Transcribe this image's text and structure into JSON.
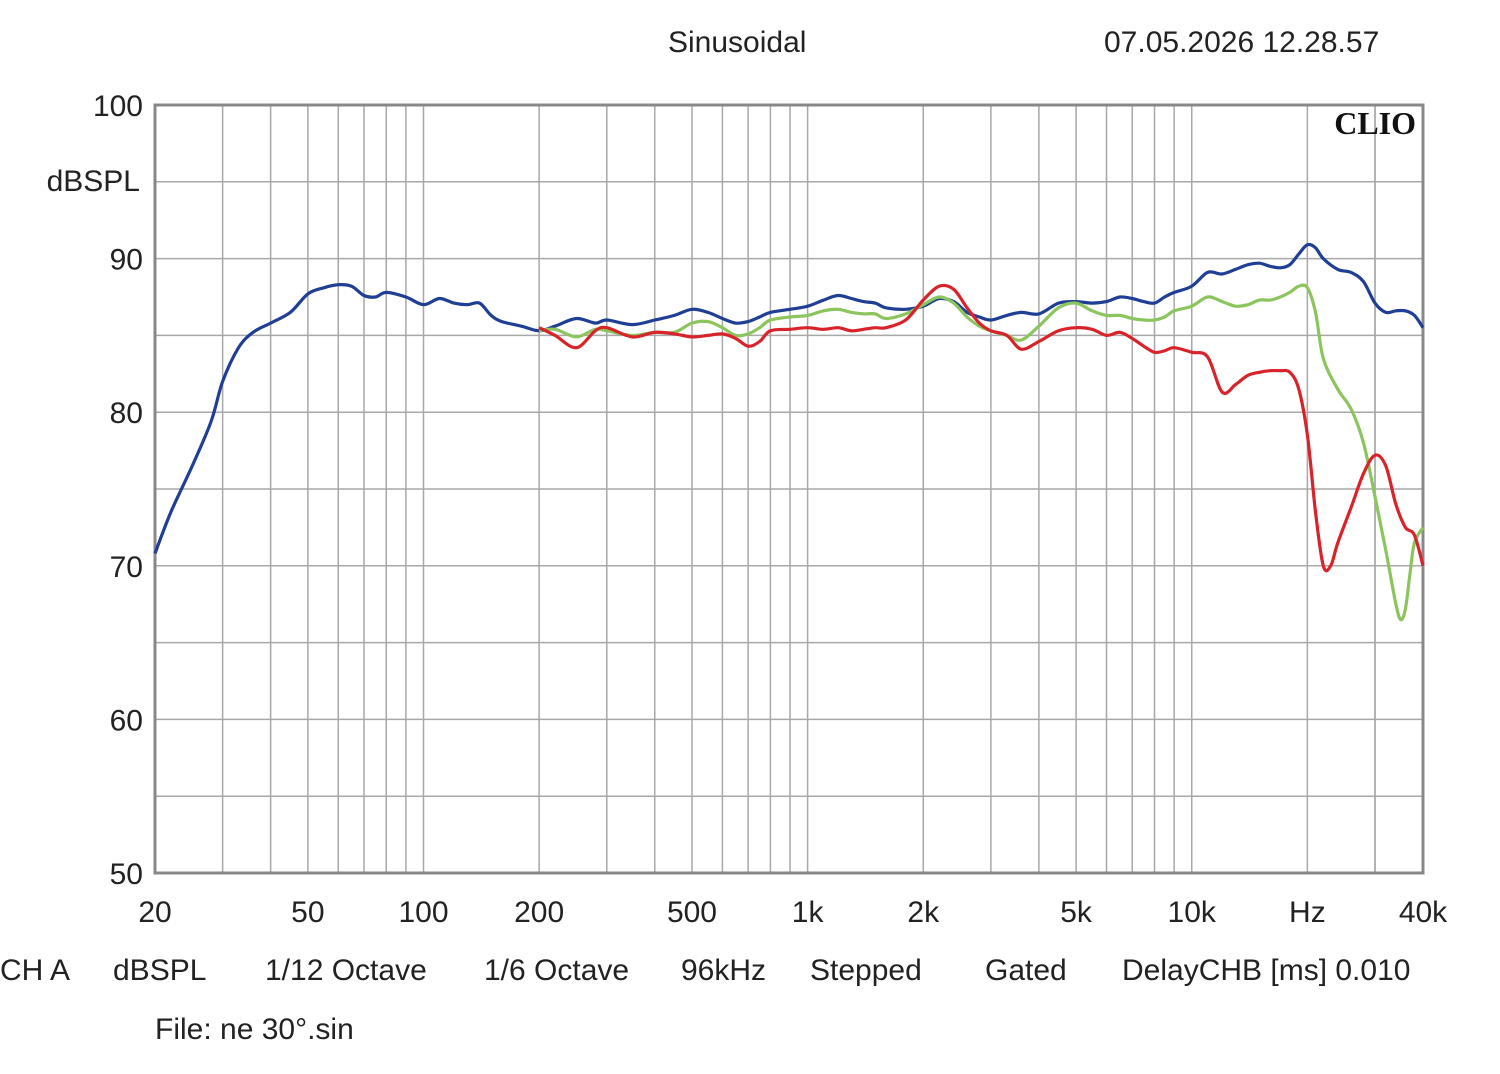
{
  "header": {
    "mode": "Sinusoidal",
    "datetime": "07.05.2026 12.28.57"
  },
  "brand": "CLIO",
  "footer": {
    "items": [
      "CH A",
      "dBSPL",
      "1/12 Octave",
      "1/6 Octave",
      "96kHz",
      "Stepped",
      "Gated",
      "DelayCHB [ms] 0.010"
    ],
    "file": "File: ne 30°.sin"
  },
  "colors": {
    "blue": "#1f3f94",
    "green": "#8cc55e",
    "red": "#d8232a",
    "grid": "#a8a8a8",
    "frame": "#888888"
  },
  "chart_data": {
    "type": "line",
    "xscale": "log",
    "xlim": [
      20,
      40000
    ],
    "ylim": [
      50,
      100
    ],
    "grid": true,
    "ylabel": "dBSPL",
    "x_ticks": [
      {
        "v": 20,
        "label": "20"
      },
      {
        "v": 50,
        "label": "50"
      },
      {
        "v": 100,
        "label": "100"
      },
      {
        "v": 200,
        "label": "200"
      },
      {
        "v": 500,
        "label": "500"
      },
      {
        "v": 1000,
        "label": "1k"
      },
      {
        "v": 2000,
        "label": "2k"
      },
      {
        "v": 5000,
        "label": "5k"
      },
      {
        "v": 10000,
        "label": "10k"
      },
      {
        "v": 20000,
        "label": "Hz"
      },
      {
        "v": 40000,
        "label": "40k"
      }
    ],
    "y_ticks": [
      {
        "v": 100,
        "label": "100"
      },
      {
        "v": 90,
        "label": "90"
      },
      {
        "v": 80,
        "label": "80"
      },
      {
        "v": 70,
        "label": "70"
      },
      {
        "v": 60,
        "label": "60"
      },
      {
        "v": 50,
        "label": "50"
      }
    ],
    "series": [
      {
        "color": "blue",
        "points": [
          [
            20,
            70.8
          ],
          [
            22,
            73.5
          ],
          [
            25,
            76.5
          ],
          [
            28,
            79.4
          ],
          [
            30,
            82.0
          ],
          [
            33,
            84.2
          ],
          [
            36,
            85.2
          ],
          [
            40,
            85.8
          ],
          [
            45,
            86.5
          ],
          [
            50,
            87.7
          ],
          [
            55,
            88.1
          ],
          [
            60,
            88.3
          ],
          [
            65,
            88.2
          ],
          [
            70,
            87.6
          ],
          [
            75,
            87.5
          ],
          [
            80,
            87.8
          ],
          [
            90,
            87.5
          ],
          [
            100,
            87.0
          ],
          [
            110,
            87.4
          ],
          [
            120,
            87.1
          ],
          [
            130,
            87.0
          ],
          [
            140,
            87.1
          ],
          [
            150,
            86.3
          ],
          [
            160,
            85.9
          ],
          [
            180,
            85.6
          ],
          [
            200,
            85.3
          ],
          [
            220,
            85.6
          ],
          [
            250,
            86.1
          ],
          [
            280,
            85.8
          ],
          [
            300,
            86.0
          ],
          [
            350,
            85.7
          ],
          [
            400,
            86.0
          ],
          [
            450,
            86.3
          ],
          [
            500,
            86.7
          ],
          [
            550,
            86.5
          ],
          [
            600,
            86.1
          ],
          [
            650,
            85.8
          ],
          [
            700,
            85.9
          ],
          [
            750,
            86.2
          ],
          [
            800,
            86.5
          ],
          [
            900,
            86.7
          ],
          [
            1000,
            86.9
          ],
          [
            1100,
            87.3
          ],
          [
            1200,
            87.6
          ],
          [
            1300,
            87.4
          ],
          [
            1400,
            87.2
          ],
          [
            1500,
            87.1
          ],
          [
            1600,
            86.8
          ],
          [
            1800,
            86.7
          ],
          [
            2000,
            86.9
          ],
          [
            2200,
            87.4
          ],
          [
            2400,
            87.2
          ],
          [
            2600,
            86.5
          ],
          [
            2800,
            86.2
          ],
          [
            3000,
            86.0
          ],
          [
            3300,
            86.3
          ],
          [
            3600,
            86.5
          ],
          [
            4000,
            86.4
          ],
          [
            4500,
            87.1
          ],
          [
            5000,
            87.2
          ],
          [
            5500,
            87.1
          ],
          [
            6000,
            87.2
          ],
          [
            6500,
            87.5
          ],
          [
            7000,
            87.4
          ],
          [
            7500,
            87.2
          ],
          [
            8000,
            87.1
          ],
          [
            8500,
            87.5
          ],
          [
            9000,
            87.8
          ],
          [
            10000,
            88.2
          ],
          [
            11000,
            89.1
          ],
          [
            12000,
            89.0
          ],
          [
            13000,
            89.3
          ],
          [
            14000,
            89.6
          ],
          [
            15000,
            89.7
          ],
          [
            16000,
            89.5
          ],
          [
            17000,
            89.4
          ],
          [
            18000,
            89.6
          ],
          [
            19000,
            90.3
          ],
          [
            20000,
            90.9
          ],
          [
            21000,
            90.7
          ],
          [
            22000,
            90.0
          ],
          [
            24000,
            89.3
          ],
          [
            26000,
            89.1
          ],
          [
            28000,
            88.5
          ],
          [
            30000,
            87.1
          ],
          [
            32000,
            86.5
          ],
          [
            34000,
            86.6
          ],
          [
            36000,
            86.6
          ],
          [
            38000,
            86.3
          ],
          [
            40000,
            85.5
          ]
        ]
      },
      {
        "color": "green",
        "points": [
          [
            200,
            85.3
          ],
          [
            220,
            85.4
          ],
          [
            250,
            84.9
          ],
          [
            280,
            85.4
          ],
          [
            300,
            85.3
          ],
          [
            350,
            85.0
          ],
          [
            400,
            85.2
          ],
          [
            450,
            85.2
          ],
          [
            500,
            85.8
          ],
          [
            550,
            85.9
          ],
          [
            600,
            85.5
          ],
          [
            650,
            85.0
          ],
          [
            700,
            85.1
          ],
          [
            750,
            85.5
          ],
          [
            800,
            86.0
          ],
          [
            900,
            86.2
          ],
          [
            1000,
            86.3
          ],
          [
            1100,
            86.6
          ],
          [
            1200,
            86.7
          ],
          [
            1300,
            86.5
          ],
          [
            1400,
            86.4
          ],
          [
            1500,
            86.4
          ],
          [
            1600,
            86.1
          ],
          [
            1800,
            86.4
          ],
          [
            2000,
            87.0
          ],
          [
            2200,
            87.5
          ],
          [
            2400,
            87.1
          ],
          [
            2600,
            86.2
          ],
          [
            2800,
            85.6
          ],
          [
            3000,
            85.3
          ],
          [
            3300,
            85.0
          ],
          [
            3600,
            84.7
          ],
          [
            4000,
            85.6
          ],
          [
            4500,
            86.8
          ],
          [
            5000,
            87.1
          ],
          [
            5500,
            86.6
          ],
          [
            6000,
            86.3
          ],
          [
            6500,
            86.3
          ],
          [
            7000,
            86.1
          ],
          [
            7500,
            86.0
          ],
          [
            8000,
            86.0
          ],
          [
            8500,
            86.2
          ],
          [
            9000,
            86.6
          ],
          [
            10000,
            86.9
          ],
          [
            11000,
            87.5
          ],
          [
            12000,
            87.2
          ],
          [
            13000,
            86.9
          ],
          [
            14000,
            87.0
          ],
          [
            15000,
            87.3
          ],
          [
            16000,
            87.3
          ],
          [
            17000,
            87.5
          ],
          [
            18000,
            87.8
          ],
          [
            19000,
            88.2
          ],
          [
            20000,
            88.1
          ],
          [
            21000,
            86.5
          ],
          [
            22000,
            83.5
          ],
          [
            24000,
            81.5
          ],
          [
            26000,
            80.2
          ],
          [
            28000,
            78.0
          ],
          [
            30000,
            74.5
          ],
          [
            32000,
            71.0
          ],
          [
            34000,
            67.5
          ],
          [
            35000,
            66.5
          ],
          [
            36000,
            67.2
          ],
          [
            37000,
            69.5
          ],
          [
            38000,
            71.5
          ],
          [
            40000,
            72.5
          ]
        ]
      },
      {
        "color": "red",
        "points": [
          [
            200,
            85.5
          ],
          [
            220,
            85.0
          ],
          [
            250,
            84.2
          ],
          [
            280,
            85.3
          ],
          [
            300,
            85.5
          ],
          [
            350,
            84.9
          ],
          [
            400,
            85.2
          ],
          [
            450,
            85.1
          ],
          [
            500,
            84.9
          ],
          [
            550,
            85.0
          ],
          [
            600,
            85.1
          ],
          [
            650,
            84.8
          ],
          [
            700,
            84.3
          ],
          [
            750,
            84.6
          ],
          [
            800,
            85.3
          ],
          [
            900,
            85.4
          ],
          [
            1000,
            85.5
          ],
          [
            1100,
            85.4
          ],
          [
            1200,
            85.5
          ],
          [
            1300,
            85.3
          ],
          [
            1400,
            85.4
          ],
          [
            1500,
            85.5
          ],
          [
            1600,
            85.5
          ],
          [
            1800,
            86.0
          ],
          [
            2000,
            87.3
          ],
          [
            2200,
            88.2
          ],
          [
            2400,
            88.0
          ],
          [
            2600,
            86.8
          ],
          [
            2800,
            85.8
          ],
          [
            3000,
            85.3
          ],
          [
            3300,
            85.0
          ],
          [
            3600,
            84.1
          ],
          [
            4000,
            84.6
          ],
          [
            4500,
            85.3
          ],
          [
            5000,
            85.5
          ],
          [
            5500,
            85.4
          ],
          [
            6000,
            85.0
          ],
          [
            6500,
            85.2
          ],
          [
            7000,
            84.8
          ],
          [
            7500,
            84.3
          ],
          [
            8000,
            83.9
          ],
          [
            8500,
            84.0
          ],
          [
            9000,
            84.2
          ],
          [
            10000,
            83.9
          ],
          [
            11000,
            83.6
          ],
          [
            12000,
            81.3
          ],
          [
            13000,
            81.8
          ],
          [
            14000,
            82.4
          ],
          [
            15000,
            82.6
          ],
          [
            16000,
            82.7
          ],
          [
            17000,
            82.7
          ],
          [
            18000,
            82.6
          ],
          [
            19000,
            81.5
          ],
          [
            20000,
            78.5
          ],
          [
            21000,
            73.5
          ],
          [
            22000,
            70.0
          ],
          [
            23000,
            70.0
          ],
          [
            24000,
            71.5
          ],
          [
            26000,
            73.8
          ],
          [
            28000,
            76.0
          ],
          [
            30000,
            77.2
          ],
          [
            32000,
            76.5
          ],
          [
            34000,
            74.0
          ],
          [
            36000,
            72.5
          ],
          [
            38000,
            72.0
          ],
          [
            40000,
            70.0
          ]
        ]
      }
    ]
  }
}
